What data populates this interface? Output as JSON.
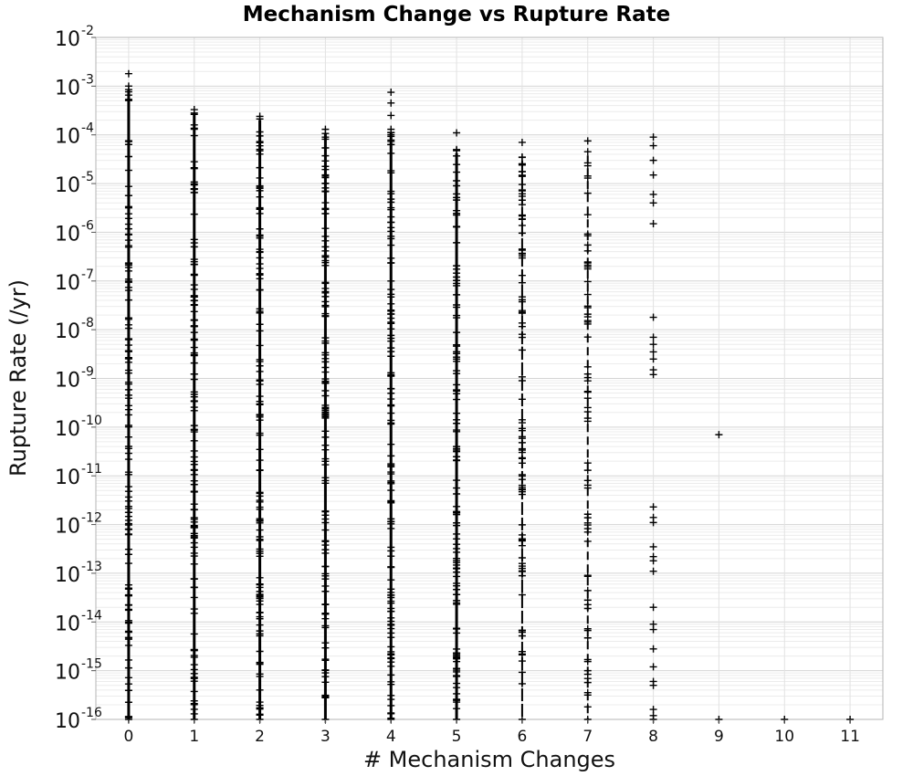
{
  "chart_data": {
    "type": "scatter",
    "title": "Mechanism Change vs Rupture Rate",
    "xlabel": "# Mechanism Changes",
    "ylabel": "Rupture Rate (/yr)",
    "x_ticks": [
      "0",
      "1",
      "2",
      "3",
      "4",
      "5",
      "6",
      "7",
      "8",
      "9",
      "10",
      "11"
    ],
    "xlim": [
      -0.5,
      11.5
    ],
    "y_scale": "log",
    "ylim": [
      1e-16,
      0.01
    ],
    "y_ticks": [
      {
        "base": "10",
        "exp": "-16"
      },
      {
        "base": "10",
        "exp": "-15"
      },
      {
        "base": "10",
        "exp": "-14"
      },
      {
        "base": "10",
        "exp": "-13"
      },
      {
        "base": "10",
        "exp": "-12"
      },
      {
        "base": "10",
        "exp": "-11"
      },
      {
        "base": "10",
        "exp": "-10"
      },
      {
        "base": "10",
        "exp": "-9"
      },
      {
        "base": "10",
        "exp": "-8"
      },
      {
        "base": "10",
        "exp": "-7"
      },
      {
        "base": "10",
        "exp": "-6"
      },
      {
        "base": "10",
        "exp": "-5"
      },
      {
        "base": "10",
        "exp": "-4"
      },
      {
        "base": "10",
        "exp": "-3"
      },
      {
        "base": "10",
        "exp": "-2"
      }
    ],
    "grid": true,
    "marker": "plus",
    "marker_color": "#000000",
    "series": [
      {
        "columns": [
          {
            "x": 0,
            "ymin": 1e-16,
            "ymax": 0.001,
            "density": 1.0,
            "outliers": [
              0.0018
            ]
          },
          {
            "x": 1,
            "ymin": 1e-16,
            "ymax": 0.00033,
            "density": 1.0,
            "outliers": []
          },
          {
            "x": 2,
            "ymin": 1e-16,
            "ymax": 0.00024,
            "density": 1.0,
            "outliers": []
          },
          {
            "x": 3,
            "ymin": 1e-16,
            "ymax": 0.00013,
            "density": 1.0,
            "outliers": []
          },
          {
            "x": 4,
            "ymin": 1e-16,
            "ymax": 0.00013,
            "density": 1.0,
            "outliers": [
              0.00075,
              0.00045,
              0.00025
            ]
          },
          {
            "x": 5,
            "ymin": 1e-16,
            "ymax": 5e-05,
            "density": 0.9,
            "outliers": [
              0.00011
            ]
          },
          {
            "x": 6,
            "ymin": 1e-16,
            "ymax": 3.5e-05,
            "density": 0.75,
            "outliers": [
              7e-05
            ]
          },
          {
            "x": 7,
            "ymin": 1e-16,
            "ymax": 4.5e-05,
            "density": 0.55,
            "outliers": [
              7.5e-05
            ]
          }
        ],
        "points": [
          {
            "x": 8,
            "y": 9e-05
          },
          {
            "x": 8,
            "y": 6e-05
          },
          {
            "x": 8,
            "y": 3e-05
          },
          {
            "x": 8,
            "y": 1.5e-05
          },
          {
            "x": 8,
            "y": 6e-06
          },
          {
            "x": 8,
            "y": 4e-06
          },
          {
            "x": 8,
            "y": 1.5e-06
          },
          {
            "x": 8,
            "y": 1.8e-08
          },
          {
            "x": 8,
            "y": 7e-09
          },
          {
            "x": 8,
            "y": 5e-09
          },
          {
            "x": 8,
            "y": 3.5e-09
          },
          {
            "x": 8,
            "y": 2.5e-09
          },
          {
            "x": 8,
            "y": 1.5e-09
          },
          {
            "x": 8,
            "y": 1.2e-09
          },
          {
            "x": 9,
            "y": 7e-11
          },
          {
            "x": 8,
            "y": 2.3e-12
          },
          {
            "x": 8,
            "y": 1.4e-12
          },
          {
            "x": 8,
            "y": 1.1e-12
          },
          {
            "x": 8,
            "y": 3.5e-13
          },
          {
            "x": 8,
            "y": 2.2e-13
          },
          {
            "x": 8,
            "y": 1.8e-13
          },
          {
            "x": 8,
            "y": 1.1e-13
          },
          {
            "x": 8,
            "y": 2e-14
          },
          {
            "x": 8,
            "y": 9e-15
          },
          {
            "x": 8,
            "y": 7e-15
          },
          {
            "x": 8,
            "y": 2.8e-15
          },
          {
            "x": 8,
            "y": 1.2e-15
          },
          {
            "x": 8,
            "y": 6e-16
          },
          {
            "x": 8,
            "y": 5e-16
          },
          {
            "x": 8,
            "y": 1.6e-16
          },
          {
            "x": 8,
            "y": 1.2e-16
          },
          {
            "x": 8,
            "y": 1e-16
          },
          {
            "x": 9,
            "y": 1e-16
          },
          {
            "x": 10,
            "y": 1e-16
          },
          {
            "x": 11,
            "y": 1e-16
          }
        ]
      }
    ]
  }
}
